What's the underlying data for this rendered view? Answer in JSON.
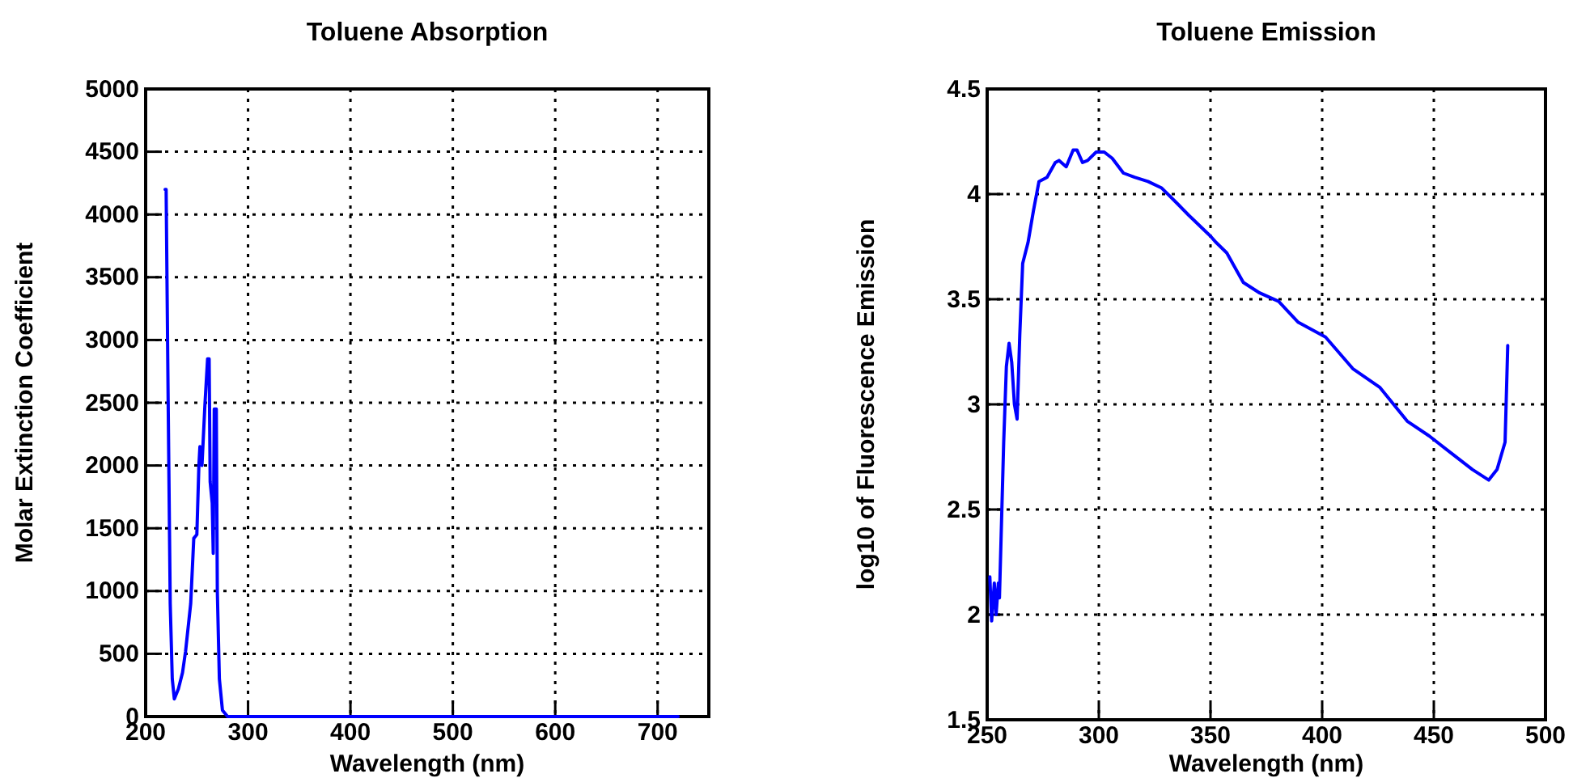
{
  "chart_data": [
    {
      "type": "line",
      "title": "Toluene Absorption",
      "xlabel": "Wavelength (nm)",
      "ylabel": "Molar Extinction Coefficient",
      "xlim": [
        200,
        750
      ],
      "xticks": [
        200,
        300,
        400,
        500,
        600,
        700
      ],
      "ylim": [
        0,
        5000
      ],
      "yticks": [
        0,
        500,
        1000,
        1500,
        2000,
        2500,
        3000,
        3500,
        4000,
        4500,
        5000
      ],
      "grid": true,
      "line_style": "solid",
      "series": [
        {
          "color": "#0000ff",
          "x": [
            219,
            220,
            222,
            224,
            226,
            228,
            232,
            236,
            239,
            244,
            247,
            250,
            252,
            253,
            255,
            258,
            260.5,
            262,
            263,
            265,
            266,
            267,
            269,
            270,
            272,
            275,
            280,
            300,
            400,
            500,
            600,
            720
          ],
          "values": [
            4200,
            4200,
            2500,
            900,
            300,
            140,
            220,
            350,
            520,
            900,
            1420,
            1450,
            2000,
            2150,
            2000,
            2500,
            2850,
            2850,
            1870,
            1700,
            1300,
            2450,
            2450,
            1000,
            300,
            50,
            0,
            0,
            0,
            0,
            0,
            0
          ]
        }
      ]
    },
    {
      "type": "line",
      "title": "Toluene Emission",
      "xlabel": "Wavelength (nm)",
      "ylabel": "log10 of Fluorescence Emission",
      "xlim": [
        250,
        500
      ],
      "xticks": [
        250,
        300,
        350,
        400,
        450,
        500
      ],
      "ylim": [
        1.5,
        4.5
      ],
      "yticks": [
        1.5,
        2,
        2.5,
        3,
        3.5,
        4,
        4.5
      ],
      "grid": true,
      "line_style": "solid",
      "series": [
        {
          "color": "#0000ff",
          "x": [
            251.2,
            252,
            253.2,
            254,
            255,
            255.5,
            257.4,
            258.6,
            259.8,
            261,
            262.2,
            263.4,
            264.6,
            265.9,
            268.3,
            270.7,
            273.2,
            276.8,
            280.5,
            282.2,
            285.4,
            288.5,
            290.2,
            292.7,
            295,
            298.8,
            302.4,
            306,
            311,
            316,
            322,
            328,
            335.6,
            340.2,
            350,
            352.5,
            357.3,
            364.7,
            372,
            380.5,
            389.3,
            401.5,
            413.7,
            425.9,
            438.1,
            447.9,
            457.6,
            467.3,
            474.6,
            478.3,
            481.9,
            483.1
          ],
          "values": [
            2.18,
            1.97,
            2.15,
            2.0,
            2.15,
            2.08,
            2.82,
            3.18,
            3.29,
            3.2,
            3.0,
            2.93,
            3.33,
            3.67,
            3.77,
            3.92,
            4.06,
            4.08,
            4.15,
            4.16,
            4.13,
            4.21,
            4.21,
            4.15,
            4.16,
            4.2,
            4.2,
            4.17,
            4.1,
            4.08,
            4.06,
            4.03,
            3.95,
            3.9,
            3.8,
            3.77,
            3.72,
            3.58,
            3.53,
            3.49,
            3.39,
            3.32,
            3.17,
            3.08,
            2.92,
            2.85,
            2.77,
            2.69,
            2.64,
            2.69,
            2.82,
            3.28
          ]
        }
      ]
    }
  ]
}
